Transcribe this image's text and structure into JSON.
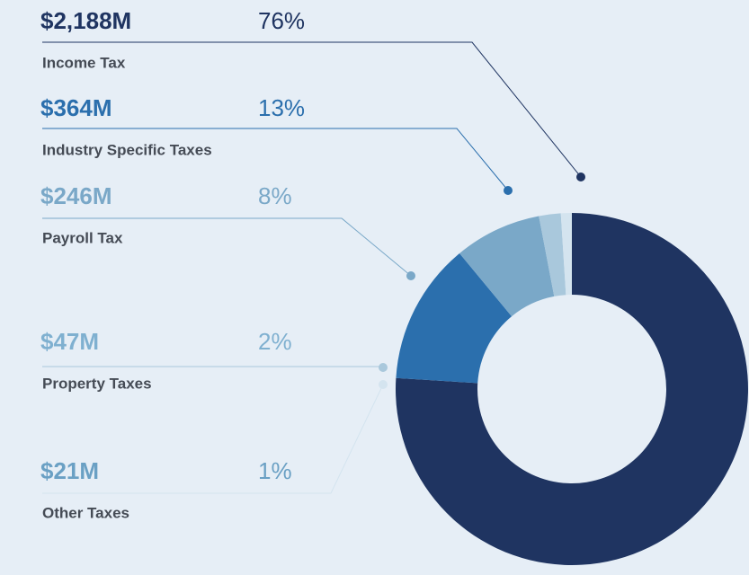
{
  "chart_data": {
    "type": "pie",
    "donut": true,
    "categories": [
      "Income Tax",
      "Industry Specific Taxes",
      "Payroll Tax",
      "Property Taxes",
      "Other Taxes"
    ],
    "amounts": [
      "$2,188M",
      "$364M",
      "$246M",
      "$47M",
      "$21M"
    ],
    "values": [
      76,
      13,
      8,
      2,
      1
    ],
    "value_labels": [
      "76%",
      "13%",
      "8%",
      "2%",
      "1%"
    ],
    "colors": [
      "#1f3461",
      "#2b6fad",
      "#7aa8c8",
      "#a9c8dc",
      "#d4e4ef"
    ]
  }
}
